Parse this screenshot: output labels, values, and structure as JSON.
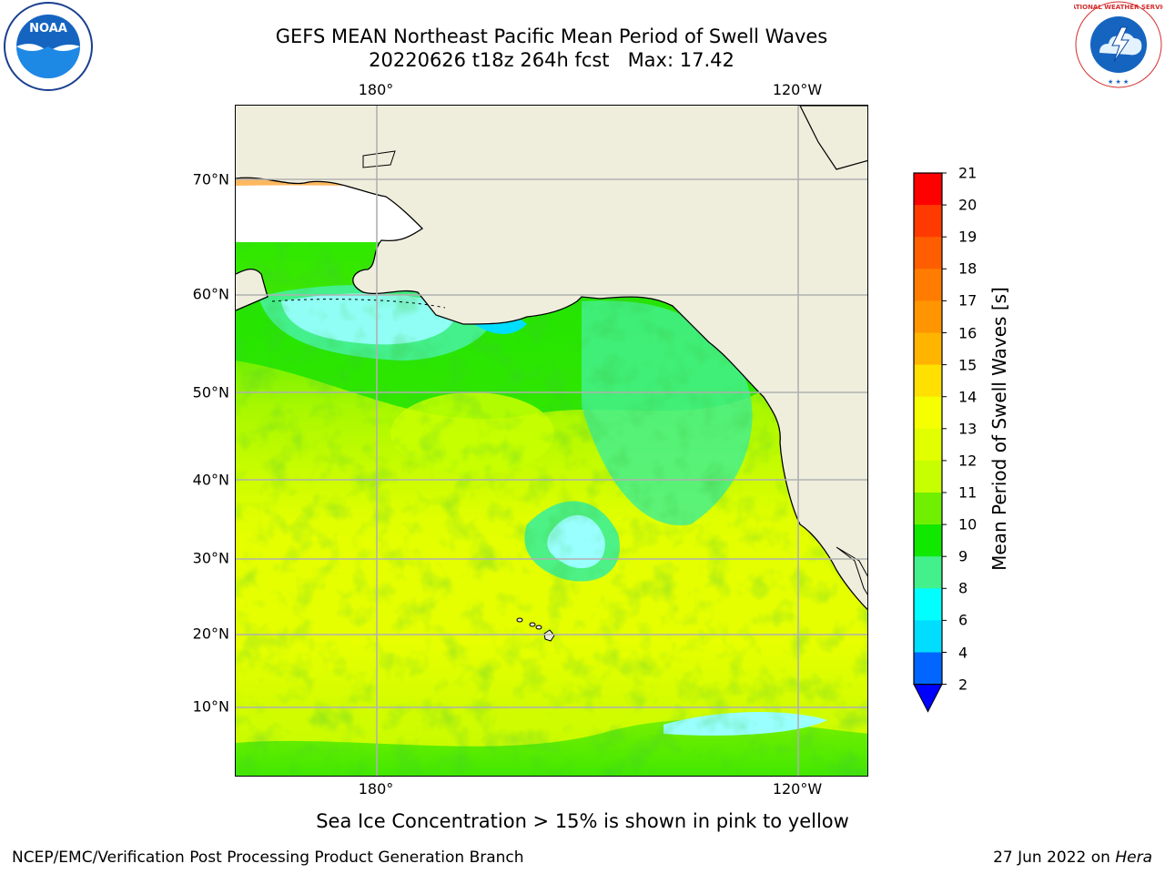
{
  "title": {
    "line1": "GEFS MEAN Northeast Pacific Mean Period of Swell Waves",
    "line2": "20220626 t18z 264h fcst   Max: 17.42"
  },
  "map": {
    "lon_labels_top": [
      "180°",
      "120°W"
    ],
    "lon_labels_bottom": [
      "180°",
      "120°W"
    ],
    "lat_labels": [
      "70°N",
      "60°N",
      "50°N",
      "40°N",
      "30°N",
      "20°N",
      "10°N"
    ],
    "colors": {
      "land": "#efeedd",
      "coast": "#000000",
      "grid": "#b0b0b0",
      "ice_pink": "#f080d8",
      "ice_orange": "#fdb860"
    }
  },
  "colorbar": {
    "label": "Mean Period of Swell Waves [s]",
    "ticks": [
      "21",
      "20",
      "19",
      "18",
      "17",
      "16",
      "15",
      "14",
      "13",
      "12",
      "11",
      "10",
      "9",
      "8",
      "6",
      "4",
      "2"
    ],
    "colors": [
      "#ff0000",
      "#ff3a00",
      "#ff5e00",
      "#ff7c00",
      "#ff9500",
      "#ffb400",
      "#ffe000",
      "#f6ff00",
      "#e2ff00",
      "#c8ff00",
      "#70f000",
      "#10e800",
      "#44f08c",
      "#88ffff",
      "#44ffff",
      "#00ffff",
      "#00ddff",
      "#0066ff",
      "#0000ff"
    ]
  },
  "footer": {
    "note": "Sea Ice Concentration > 15% is shown in pink to yellow",
    "credit": "NCEP/EMC/Verification Post Processing Product Generation Branch",
    "date_prefix": "27 Jun 2022 on ",
    "machine": "Hera"
  },
  "logos": {
    "left": "NOAA",
    "right": "NATIONAL WEATHER SERVICE"
  }
}
